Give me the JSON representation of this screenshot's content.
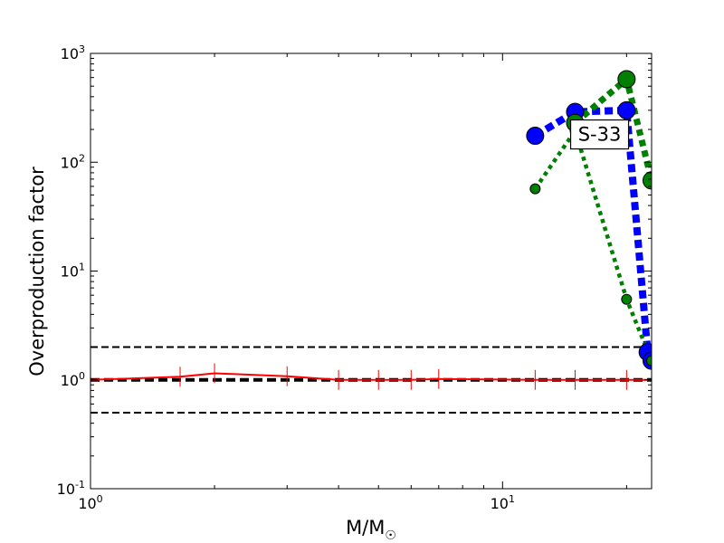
{
  "chart_data": {
    "type": "line",
    "xscale": "log",
    "yscale": "log",
    "xlim": [
      1,
      23
    ],
    "ylim": [
      0.1,
      1000
    ],
    "xlabel": "M/M",
    "xlabel_symbol": "☉",
    "ylabel": "Overproduction factor",
    "x_tick_labels": [
      {
        "value": 1,
        "base": "10",
        "exp": "0"
      },
      {
        "value": 10,
        "base": "10",
        "exp": "1"
      }
    ],
    "y_tick_labels": [
      {
        "value": 0.1,
        "base": "10",
        "exp": "-1"
      },
      {
        "value": 1,
        "base": "10",
        "exp": "0"
      },
      {
        "value": 10,
        "base": "10",
        "exp": "1"
      },
      {
        "value": 100,
        "base": "10",
        "exp": "2"
      },
      {
        "value": 1000,
        "base": "10",
        "exp": "3"
      }
    ],
    "reference_lines": [
      {
        "y": 2,
        "color": "#000000",
        "style": "dashed"
      },
      {
        "y": 1,
        "color": "#000000",
        "style": "dashed-thick"
      },
      {
        "y": 0.5,
        "color": "#000000",
        "style": "dashed"
      }
    ],
    "series": [
      {
        "color": "#ff0000",
        "style": "solid",
        "marker": "vline",
        "x": [
          1.0,
          1.65,
          2.0,
          3.0,
          4.0,
          5.0,
          6.0,
          7.0,
          12.0,
          15.0,
          20.0,
          22.5
        ],
        "y": [
          1.0,
          1.07,
          1.15,
          1.08,
          1.0,
          1.0,
          1.0,
          1.02,
          1.0,
          1.0,
          1.0,
          1.0
        ],
        "marker_x": [
          1.65,
          2.0,
          3.0,
          4.0,
          5.0,
          6.0,
          7.0,
          12.0,
          15.0,
          20.0
        ]
      },
      {
        "color": "#0000ff",
        "style": "dashed-thick",
        "marker": "circle-large",
        "x": [
          12.0,
          15.0,
          20.0,
          22.5,
          23.0
        ],
        "y": [
          175,
          290,
          300,
          1.8,
          1.5
        ]
      },
      {
        "color": "#008000",
        "style": "dotted-thick",
        "marker": "circle-large",
        "x": [
          15.0,
          20.0,
          23.0
        ],
        "y": [
          230,
          580,
          68
        ]
      },
      {
        "color": "#008000",
        "style": "dotted",
        "marker": "circle-small",
        "x": [
          12.0,
          15.0,
          20.0,
          23.0
        ],
        "y": [
          57,
          195,
          5.5,
          1.5
        ]
      }
    ],
    "annotations": [
      {
        "text": "S-33",
        "x": 17.2,
        "y": 180
      }
    ],
    "colors": {
      "frame": "#000000",
      "background": "#ffffff"
    }
  }
}
